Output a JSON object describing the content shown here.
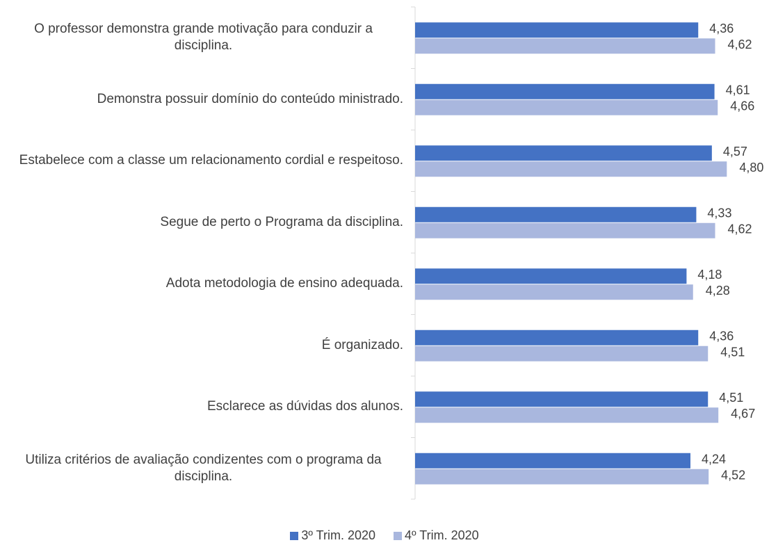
{
  "chart_data": {
    "type": "hbar",
    "categories": [
      "O professor demonstra grande motivação para conduzir a disciplina.",
      "Demonstra possuir domínio do conteúdo ministrado.",
      "Estabelece com a classe um relacionamento cordial e respeitoso.",
      "Segue de perto o Programa da disciplina.",
      "Adota metodologia de ensino adequada.",
      "É organizado.",
      "Esclarece as dúvidas dos alunos.",
      "Utiliza critérios de avaliação condizentes com o programa da disciplina."
    ],
    "series": [
      {
        "name": "3º Trim. 2020",
        "color": "#4472c4",
        "values": [
          4.36,
          4.61,
          4.57,
          4.33,
          4.18,
          4.36,
          4.51,
          4.24
        ],
        "value_labels": [
          "4,36",
          "4,61",
          "4,57",
          "4,33",
          "4,18",
          "4,36",
          "4,51",
          "4,24"
        ]
      },
      {
        "name": "4º Trim. 2020",
        "color": "#a9b7de",
        "values": [
          4.62,
          4.66,
          4.8,
          4.62,
          4.28,
          4.51,
          4.67,
          4.52
        ],
        "value_labels": [
          "4,62",
          "4,66",
          "4,80",
          "4,62",
          "4,28",
          "4,51",
          "4,67",
          "4,52"
        ]
      }
    ],
    "xlim": [
      0,
      5
    ],
    "legend": "bottom"
  }
}
